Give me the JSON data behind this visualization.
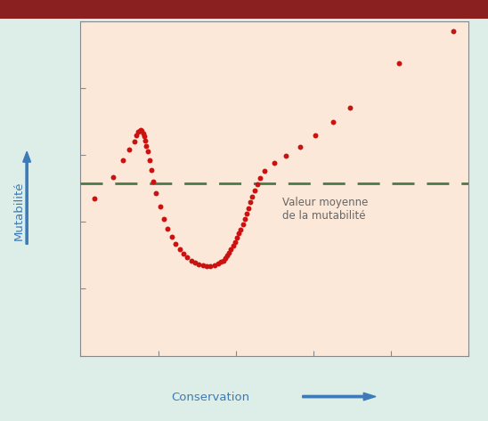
{
  "xlabel": "Conservation",
  "ylabel": "Mutabilité",
  "bg_color": "#fce8d8",
  "outer_bg": "#ddeee8",
  "dot_color": "#cc1111",
  "dashed_color": "#4a7a4a",
  "arrow_color": "#3c7ab8",
  "text_color": "#666666",
  "mean_label": "Valeur moyenne\nde la mutabilité",
  "xlim": [
    0,
    10
  ],
  "ylim": [
    0,
    10
  ],
  "mean_y": 5.15,
  "points_x": [
    0.35,
    0.85,
    1.1,
    1.25,
    1.38,
    1.43,
    1.48,
    1.52,
    1.55,
    1.58,
    1.61,
    1.64,
    1.67,
    1.7,
    1.73,
    1.77,
    1.82,
    1.88,
    1.95,
    2.05,
    2.15,
    2.25,
    2.35,
    2.45,
    2.55,
    2.65,
    2.75,
    2.85,
    2.95,
    3.05,
    3.15,
    3.25,
    3.35,
    3.45,
    3.55,
    3.62,
    3.68,
    3.73,
    3.78,
    3.83,
    3.88,
    3.93,
    3.98,
    4.03,
    4.08,
    4.13,
    4.18,
    4.23,
    4.28,
    4.33,
    4.38,
    4.43,
    4.48,
    4.55,
    4.63,
    4.75,
    5.0,
    5.3,
    5.65,
    6.05,
    6.5,
    6.95,
    8.2,
    9.6
  ],
  "points_y": [
    4.7,
    5.35,
    5.85,
    6.15,
    6.4,
    6.6,
    6.68,
    6.72,
    6.75,
    6.72,
    6.65,
    6.55,
    6.42,
    6.28,
    6.1,
    5.85,
    5.55,
    5.2,
    4.85,
    4.45,
    4.1,
    3.8,
    3.55,
    3.35,
    3.18,
    3.05,
    2.95,
    2.85,
    2.78,
    2.72,
    2.7,
    2.68,
    2.68,
    2.7,
    2.75,
    2.8,
    2.85,
    2.92,
    3.0,
    3.08,
    3.18,
    3.28,
    3.4,
    3.52,
    3.65,
    3.78,
    3.93,
    4.08,
    4.24,
    4.4,
    4.58,
    4.75,
    4.93,
    5.12,
    5.32,
    5.52,
    5.75,
    5.98,
    6.25,
    6.58,
    6.98,
    7.42,
    8.75,
    9.7
  ]
}
